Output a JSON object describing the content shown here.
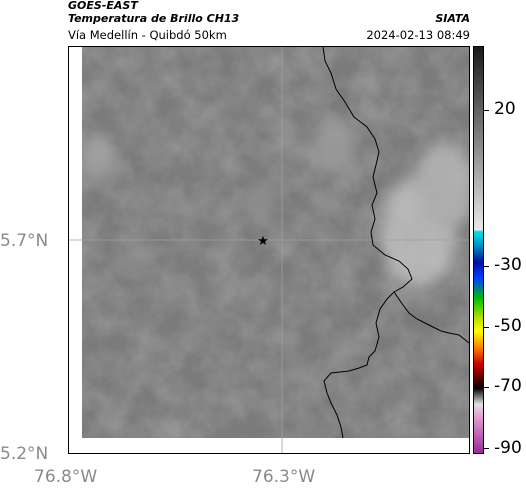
{
  "header": {
    "satellite": "GOES-EAST",
    "product": "Temperatura de Brillo CH13",
    "location": "Vía Medellín - Quibdó 50km",
    "organization": "SIATA",
    "timestamp": "2024-02-13 08:49"
  },
  "map": {
    "lat_labels": [
      {
        "text": "5.7°N",
        "value": 5.7
      },
      {
        "text": "5.2°N",
        "value": 5.2
      }
    ],
    "lon_labels": [
      {
        "text": "76.8°W",
        "value": -76.8
      },
      {
        "text": "76.3°W",
        "value": -76.3
      }
    ],
    "marker": {
      "symbol": "★",
      "name": "reference-point"
    }
  },
  "colorbar": {
    "tick_labels": [
      {
        "text": "20",
        "value": 20
      },
      {
        "text": "-30",
        "value": -30
      },
      {
        "text": "-50",
        "value": -50
      },
      {
        "text": "-70",
        "value": -70
      },
      {
        "text": "-90",
        "value": -90
      }
    ],
    "colors": {
      "warm_gray": "#1a1a1a",
      "light_gray": "#e8e8e8",
      "cyan": "#00d0e0",
      "blue": "#0010a0",
      "green": "#00c000",
      "yellow": "#ffff00",
      "red": "#d00000",
      "black": "#000000",
      "magenta": "#b040b0"
    }
  },
  "colors": {
    "map_background": "#7b7b7b",
    "boundary_line": "#000000",
    "axis_label": "#8a8a8a"
  }
}
